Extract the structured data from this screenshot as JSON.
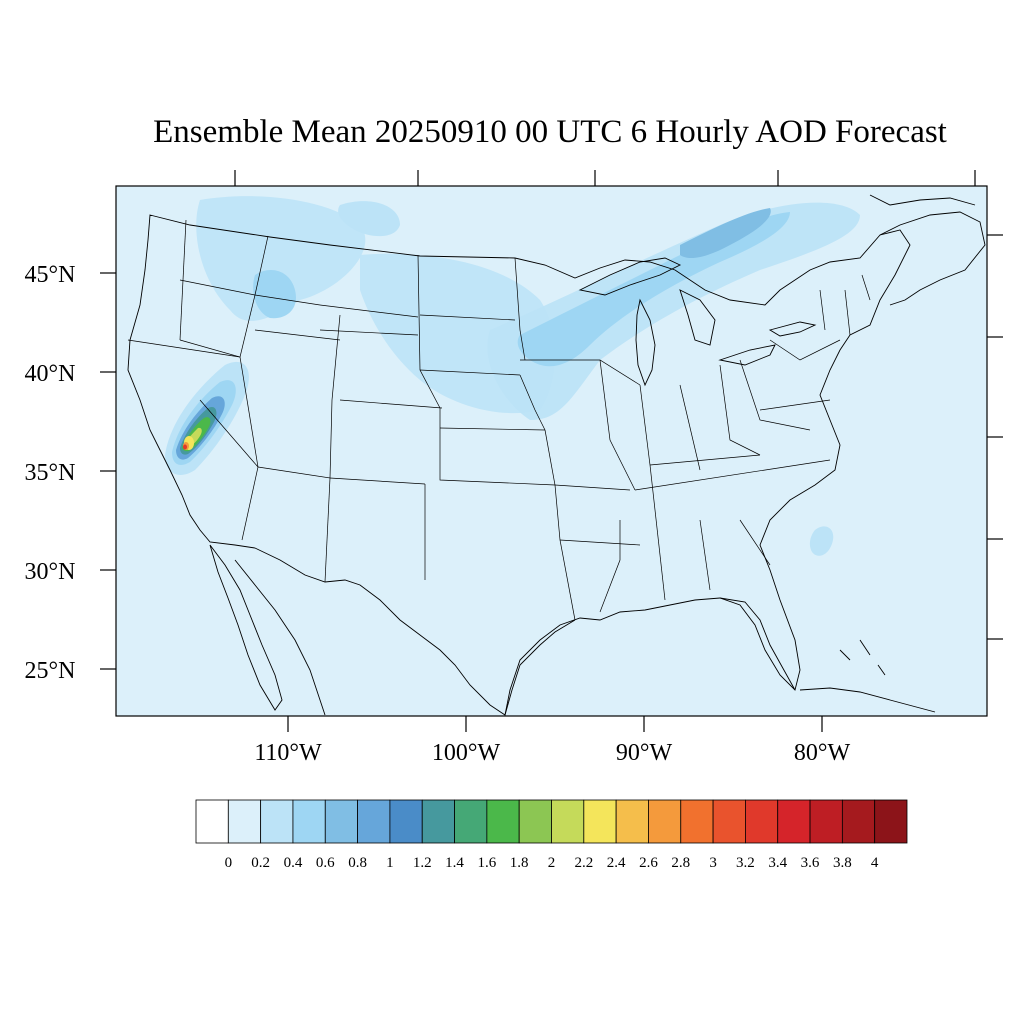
{
  "title": "Ensemble Mean 20250910 00 UTC 6 Hourly AOD Forecast",
  "map": {
    "projection": "Lambert conformal conic",
    "region": "Contiguous United States",
    "background_color": "#DCF0FA",
    "line_color": "#000000",
    "lat_labels": [
      "45°N",
      "40°N",
      "35°N",
      "30°N",
      "25°N"
    ],
    "lon_labels": [
      "110°W",
      "100°W",
      "90°W",
      "80°W"
    ]
  },
  "features": [
    {
      "name": "Smoke plume core, southern Nevada / California border",
      "max_aod": 3.0
    },
    {
      "name": "Upper Midwest / Great Lakes haze band",
      "aod": 0.6
    },
    {
      "name": "Northern Rockies / Idaho-Montana haze",
      "aod": 0.6
    },
    {
      "name": "Northern Plains haze",
      "aod": 0.4
    }
  ],
  "colorbar": {
    "labels": [
      "0",
      "0.2",
      "0.4",
      "0.6",
      "0.8",
      "1",
      "1.2",
      "1.4",
      "1.6",
      "1.8",
      "2",
      "2.2",
      "2.4",
      "2.6",
      "2.8",
      "3",
      "3.2",
      "3.4",
      "3.6",
      "3.8",
      "4"
    ],
    "colors": [
      "#FFFFFF",
      "#DCF0FA",
      "#BCE3F7",
      "#9ED6F3",
      "#80BEE4",
      "#66A6DA",
      "#4A8CC8",
      "#46999E",
      "#45A876",
      "#4BB84A",
      "#8CC653",
      "#C5DA5A",
      "#F4E55B",
      "#F5BE4B",
      "#F49A3C",
      "#F1712E",
      "#E9532D",
      "#E0392B",
      "#D5242A",
      "#BE1E24",
      "#A51A1E",
      "#8C1419"
    ]
  }
}
